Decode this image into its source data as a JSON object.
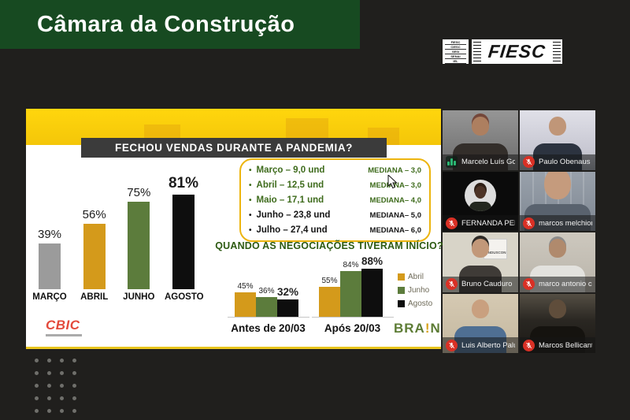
{
  "header": {
    "title": "Câmara da Construção"
  },
  "fiesc": {
    "name": "FIESC",
    "small_box_lines": [
      "FIESC",
      "CIESC",
      "SESI",
      "SENAI",
      "IEL"
    ]
  },
  "slide": {
    "title": "FECHOU VENDAS DURANTE A PANDEMIA?",
    "subtitle": "QUANDO AS NEGOCIAÇÕES TIVERAM INÍCIO?",
    "cbic_logo": "CBIC",
    "brain_logo": {
      "pre": "BRA",
      "bang": "!",
      "post": "N"
    },
    "mediana_rows": [
      {
        "label": "Março – 9,0 und",
        "mediana": "MEDIANA – 3,0"
      },
      {
        "label": "Abril – 12,5 und",
        "mediana": "MEDIANA– 3,0"
      },
      {
        "label": "Maio – 17,1 und",
        "mediana": "MEDIANA– 4,0"
      },
      {
        "label": "Junho – 23,8 und",
        "mediana": "MEDIANA– 5,0"
      },
      {
        "label": "Julho – 27,4 und",
        "mediana": "MEDIANA– 6,0"
      }
    ]
  },
  "chart_data": [
    {
      "type": "bar",
      "title": "FECHOU VENDAS DURANTE A PANDEMIA?",
      "categories": [
        "MARÇO",
        "ABRIL",
        "JUNHO",
        "AGOSTO"
      ],
      "values": [
        39,
        56,
        75,
        81
      ],
      "value_labels": [
        "39%",
        "56%",
        "75%",
        "81%"
      ],
      "colors": [
        "#9b9b9b",
        "#d49a1b",
        "#5c7c3c",
        "#0e0e0e"
      ],
      "ylim": [
        0,
        100
      ],
      "grid": false
    },
    {
      "type": "grouped-bar",
      "title": "QUANDO AS NEGOCIAÇÕES TIVERAM INÍCIO?",
      "categories": [
        "Antes de 20/03",
        "Após 20/03"
      ],
      "series": [
        {
          "name": "Abril",
          "color": "#d49a1b",
          "values": [
            45,
            55
          ]
        },
        {
          "name": "Junho",
          "color": "#5c7c3c",
          "values": [
            36,
            84
          ]
        },
        {
          "name": "Agosto",
          "color": "#0e0e0e",
          "values": [
            32,
            88
          ]
        }
      ],
      "value_labels": [
        [
          "45%",
          "36%",
          "32%"
        ],
        [
          "55%",
          "84%",
          "88%"
        ]
      ],
      "ylim": [
        0,
        100
      ],
      "legend_position": "right",
      "grid": false
    }
  ],
  "participants": [
    {
      "name": "Marcelo Luís Gonçal…",
      "audio": "speaking"
    },
    {
      "name": "Paulo Obenaus",
      "audio": "muted"
    },
    {
      "name": "FERNANDA PEREIRA…",
      "audio": "muted"
    },
    {
      "name": "marcos melchioretto",
      "audio": "muted"
    },
    {
      "name": "Bruno Cauduro",
      "audio": "muted",
      "background_text": "SINDUSCON"
    },
    {
      "name": "marco antonio corsini",
      "audio": "muted"
    },
    {
      "name": "Luis Alberto Paludo",
      "audio": "muted"
    },
    {
      "name": "Marcos Bellicanta",
      "audio": "muted"
    }
  ],
  "colors": {
    "header_green": "#174a21",
    "slide_band_yellow": "#ffd60d",
    "mediana_border_gold": "#edb50f",
    "subtitle_green": "#2d5a12",
    "cbic_red": "#e34a3c",
    "brain_green": "#5d7c35",
    "brain_bang_gold": "#d9a31c",
    "mic_muted_red": "#d93025",
    "audio_active_green": "#2bb673"
  }
}
